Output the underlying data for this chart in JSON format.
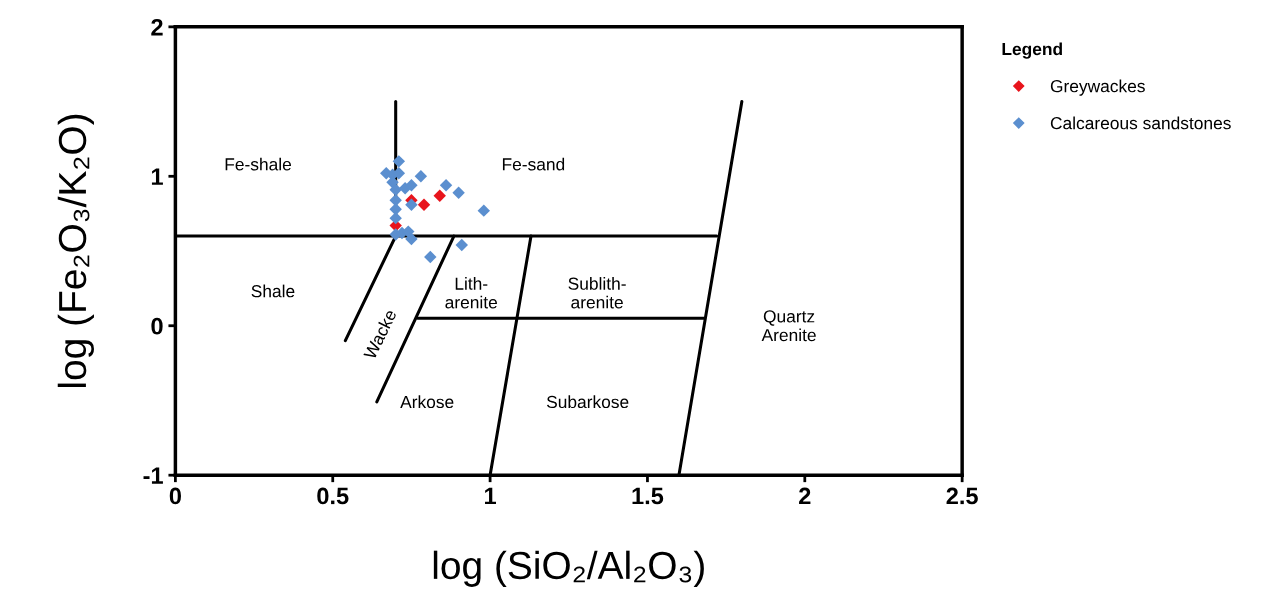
{
  "chart_data": {
    "type": "scatter",
    "xlabel": "log (SiO₂/Al₂O₃)",
    "ylabel": "log (Fe₂O₃/K₂O)",
    "legend_title": "Legend",
    "legend": "right",
    "xlim": [
      0,
      2.5
    ],
    "xticks": [
      0,
      0.5,
      1,
      1.5,
      2,
      2.5
    ],
    "ylim": [
      -1,
      2
    ],
    "yticks": [
      -1,
      0,
      1,
      2
    ],
    "grid": false,
    "series": [
      {
        "type": "line",
        "color": "#000000",
        "marker": "none",
        "line_style": "solid",
        "x": [
          0.7,
          0.7
        ],
        "values": [
          1.5,
          0.6
        ]
      },
      {
        "type": "line",
        "color": "#000000",
        "marker": "none",
        "line_style": "solid",
        "x": [
          0,
          1.72
        ],
        "values": [
          0.6,
          0.6
        ]
      },
      {
        "type": "line",
        "color": "#000000",
        "marker": "none",
        "line_style": "solid",
        "x": [
          0.54,
          0.7
        ],
        "values": [
          -0.1,
          0.6
        ]
      },
      {
        "type": "line",
        "color": "#000000",
        "marker": "none",
        "line_style": "solid",
        "x": [
          0.64,
          0.885
        ],
        "values": [
          -0.51,
          0.6
        ]
      },
      {
        "type": "line",
        "color": "#000000",
        "marker": "none",
        "line_style": "solid",
        "x": [
          0.77,
          1.68
        ],
        "values": [
          0.05,
          0.05
        ]
      },
      {
        "type": "line",
        "color": "#000000",
        "marker": "none",
        "line_style": "solid",
        "x": [
          1.0,
          1.13
        ],
        "values": [
          -1,
          0.6
        ]
      },
      {
        "type": "line",
        "color": "#000000",
        "marker": "none",
        "line_style": "solid",
        "x": [
          1.6,
          1.8
        ],
        "values": [
          -1,
          1.5
        ]
      },
      {
        "name": "Greywackes",
        "color": "#e8141c",
        "marker": "diamond",
        "x": [
          0.75,
          0.79,
          0.84,
          0.7
        ],
        "values": [
          0.84,
          0.81,
          0.87,
          0.67
        ]
      },
      {
        "name": "Calcareous sandstones",
        "color": "#5b8fcf",
        "marker": "diamond",
        "x": [
          0.71,
          0.67,
          0.69,
          0.71,
          0.69,
          0.7,
          0.73,
          0.75,
          0.78,
          0.75,
          0.86,
          0.9,
          0.7,
          0.7,
          0.98,
          0.7,
          0.7,
          0.72,
          0.74,
          0.75,
          0.91,
          0.81
        ],
        "values": [
          1.1,
          1.02,
          1.01,
          1.02,
          0.96,
          0.91,
          0.92,
          0.94,
          1.0,
          0.81,
          0.94,
          0.89,
          0.84,
          0.78,
          0.77,
          0.72,
          0.61,
          0.62,
          0.63,
          0.58,
          0.54,
          0.46
        ]
      }
    ],
    "annotations": [
      "Fe-shale",
      "Fe-sand",
      "Shale",
      "Lith-\narenite",
      "Sublith-\narenite",
      "Quartz\nArenite",
      "Wacke",
      "Arkose",
      "Subarkose"
    ]
  }
}
